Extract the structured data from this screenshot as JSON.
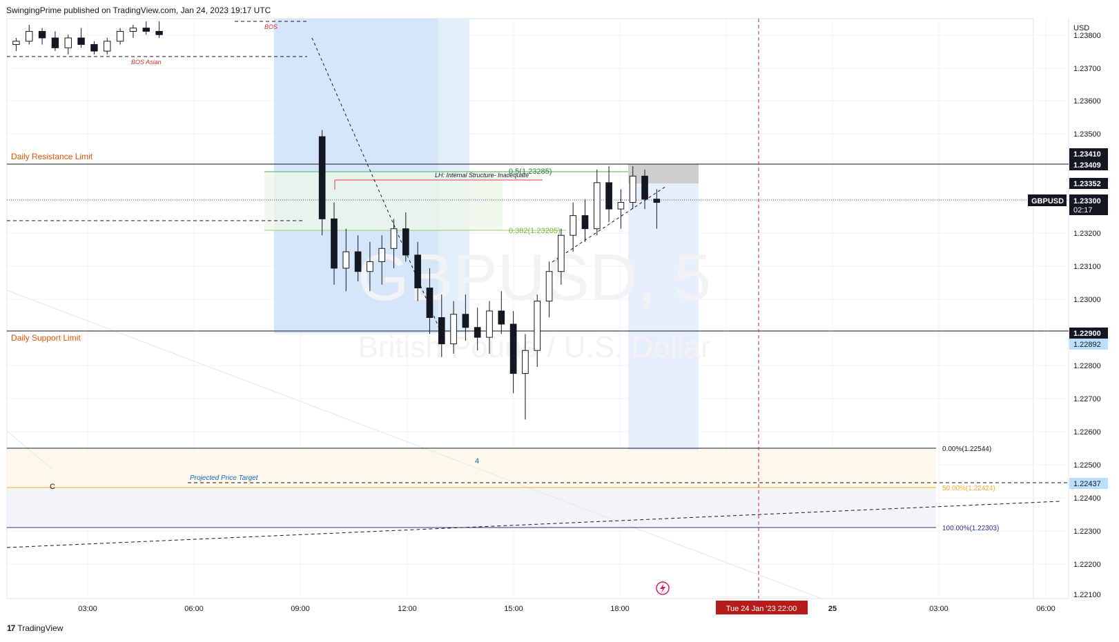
{
  "header": {
    "publisher": "SwingingPrime published on TradingView.com, Jan 24, 2023 19:17 UTC"
  },
  "footer": {
    "brand": "TradingView",
    "logo_mark": "17"
  },
  "watermark": {
    "symbol": "GBPUSD, 5",
    "description": "British Pound / U.S. Dollar"
  },
  "price_axis": {
    "currency": "USD",
    "ticks": [
      "1.23800",
      "1.23700",
      "1.23600",
      "1.23500",
      "1.23200",
      "1.23100",
      "1.23000",
      "1.22800",
      "1.22700",
      "1.22600",
      "1.22500",
      "1.22400",
      "1.22300",
      "1.22200",
      "1.22100"
    ]
  },
  "time_axis": {
    "ticks": [
      "03:00",
      "06:00",
      "09:00",
      "12:00",
      "15:00",
      "18:00",
      "25",
      "03:00",
      "06:00"
    ],
    "crosshair_label": "Tue 24 Jan '23   22:00"
  },
  "price_badges": {
    "resistance_top": "1.23410",
    "resistance_bottom": "1.23409",
    "level_a": "1.23352",
    "symbol_tag": "GBPUSD",
    "current_price": "1.23300",
    "countdown": "02:17",
    "support": "1.22900",
    "support_b": "1.22892",
    "target": "1.22437"
  },
  "annotations": {
    "daily_resistance": "Daily Resistance Limit",
    "daily_support": "Daily Support Limit",
    "bos": "BOS",
    "bos_asian": "BOS Asian",
    "lh_internal": "LH: Internal Structure- Inadequate",
    "fib_05": "0.5(1.23285)",
    "fib_0382": "0.382(1.23205)",
    "fib_0": "0.00%(1.22544)",
    "fib_50": "50.00%(1.22424)",
    "fib_100": "100.00%(1.22303)",
    "projected_target": "Projected Price Target",
    "wave_4": "4",
    "wave_c": "C"
  },
  "colors": {
    "resistance_label": "#e65100",
    "bos_label": "#d32f2f",
    "fib_green": "#2e7d32",
    "fib_lime": "#7cb342",
    "fib_orange": "#f9a825",
    "fib_navy": "#283593",
    "blue_zone": "#cfe2f8",
    "crosshair_red": "#c62828",
    "badge_dark": "#131722",
    "badge_blue": "#bbdefb"
  },
  "chart_data": {
    "type": "candlestick",
    "symbol": "GBPUSD",
    "interval": "5",
    "ylim": [
      1.221,
      1.2385
    ],
    "levels": {
      "daily_resistance": 1.23409,
      "daily_support": 1.229,
      "current_price": 1.233,
      "fib_0": 1.22544,
      "fib_50": 1.22424,
      "fib_100": 1.22303,
      "target": 1.22437
    },
    "ohlc": [
      [
        1.2378,
        1.238,
        1.2376,
        1.2379
      ],
      [
        1.2379,
        1.2384,
        1.2378,
        1.2382
      ],
      [
        1.2382,
        1.2383,
        1.2378,
        1.238
      ],
      [
        1.238,
        1.2382,
        1.2376,
        1.2377
      ],
      [
        1.2377,
        1.2381,
        1.2375,
        1.238
      ],
      [
        1.238,
        1.2383,
        1.2377,
        1.2378
      ],
      [
        1.2378,
        1.2379,
        1.2375,
        1.2376
      ],
      [
        1.2376,
        1.238,
        1.2375,
        1.2379
      ],
      [
        1.2379,
        1.2383,
        1.2378,
        1.2382
      ],
      [
        1.2382,
        1.2384,
        1.238,
        1.2383
      ],
      [
        1.2383,
        1.2385,
        1.2381,
        1.2382
      ],
      [
        1.2382,
        1.2385,
        1.238,
        1.2381
      ],
      [
        1.235,
        1.2352,
        1.232,
        1.2325
      ],
      [
        1.2325,
        1.233,
        1.2305,
        1.231
      ],
      [
        1.231,
        1.2322,
        1.2303,
        1.2315
      ],
      [
        1.2315,
        1.232,
        1.2306,
        1.2309
      ],
      [
        1.2309,
        1.2318,
        1.2303,
        1.2312
      ],
      [
        1.2312,
        1.232,
        1.2305,
        1.2316
      ],
      [
        1.2316,
        1.2325,
        1.231,
        1.2322
      ],
      [
        1.2322,
        1.2327,
        1.2312,
        1.2314
      ],
      [
        1.2314,
        1.2318,
        1.23,
        1.2304
      ],
      [
        1.2304,
        1.231,
        1.229,
        1.2295
      ],
      [
        1.2295,
        1.2302,
        1.2283,
        1.2287
      ],
      [
        1.2287,
        1.23,
        1.2284,
        1.2296
      ],
      [
        1.2296,
        1.2302,
        1.2288,
        1.2292
      ],
      [
        1.2292,
        1.2298,
        1.2285,
        1.2289
      ],
      [
        1.2289,
        1.23,
        1.2284,
        1.2297
      ],
      [
        1.2297,
        1.2303,
        1.229,
        1.2293
      ],
      [
        1.2293,
        1.2297,
        1.2272,
        1.2278
      ],
      [
        1.2278,
        1.229,
        1.2264,
        1.2285
      ],
      [
        1.2285,
        1.2302,
        1.228,
        1.23
      ],
      [
        1.23,
        1.2312,
        1.2295,
        1.2309
      ],
      [
        1.2309,
        1.2322,
        1.2305,
        1.232
      ],
      [
        1.232,
        1.233,
        1.2315,
        1.2326
      ],
      [
        1.2326,
        1.2331,
        1.2318,
        1.2322
      ],
      [
        1.2322,
        1.234,
        1.232,
        1.2336
      ],
      [
        1.2336,
        1.2341,
        1.2324,
        1.2328
      ],
      [
        1.2328,
        1.2334,
        1.2322,
        1.233
      ],
      [
        1.233,
        1.2341,
        1.2328,
        1.2338
      ],
      [
        1.2338,
        1.234,
        1.2328,
        1.2331
      ],
      [
        1.2331,
        1.2334,
        1.2322,
        1.233
      ]
    ]
  }
}
